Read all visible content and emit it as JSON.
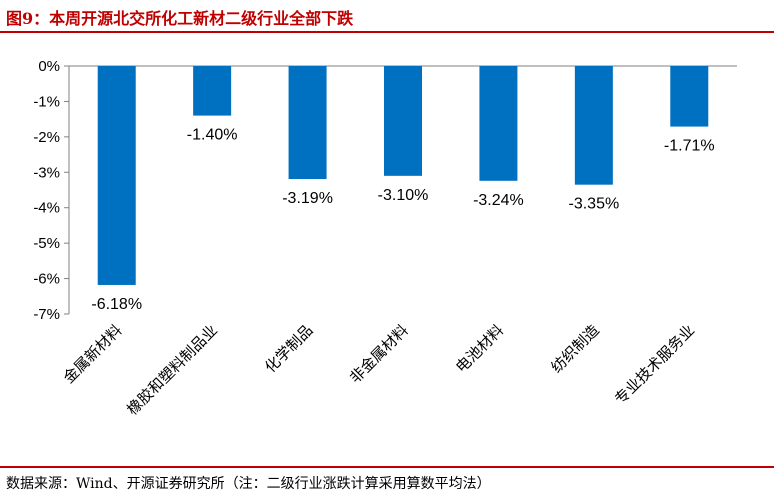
{
  "figure": {
    "title": "图9：本周开源北交所化工新材二级行业全部下跌",
    "source": "数据来源：Wind、开源证券研究所（注：二级行业涨跌计算采用算数平均法）"
  },
  "colors": {
    "bar": "#0070C0",
    "accent": "#C00000",
    "axis": "#808080"
  },
  "chart_data": {
    "type": "bar",
    "categories": [
      "金属新材料",
      "橡胶和塑料制品业",
      "化学制品",
      "非金属材料",
      "电池材料",
      "纺织制造",
      "专业技术服务业"
    ],
    "values": [
      -6.18,
      -1.4,
      -3.19,
      -3.1,
      -3.24,
      -3.35,
      -1.71
    ],
    "data_labels": [
      "-6.18%",
      "-1.40%",
      "-3.19%",
      "-3.10%",
      "-3.24%",
      "-3.35%",
      "-1.71%"
    ],
    "ylim": [
      -7,
      0
    ],
    "yticks": [
      0,
      -1,
      -2,
      -3,
      -4,
      -5,
      -6,
      -7
    ],
    "ytick_labels": [
      "0%",
      "-1%",
      "-2%",
      "-3%",
      "-4%",
      "-5%",
      "-6%",
      "-7%"
    ],
    "grid": false,
    "legend": "none"
  }
}
